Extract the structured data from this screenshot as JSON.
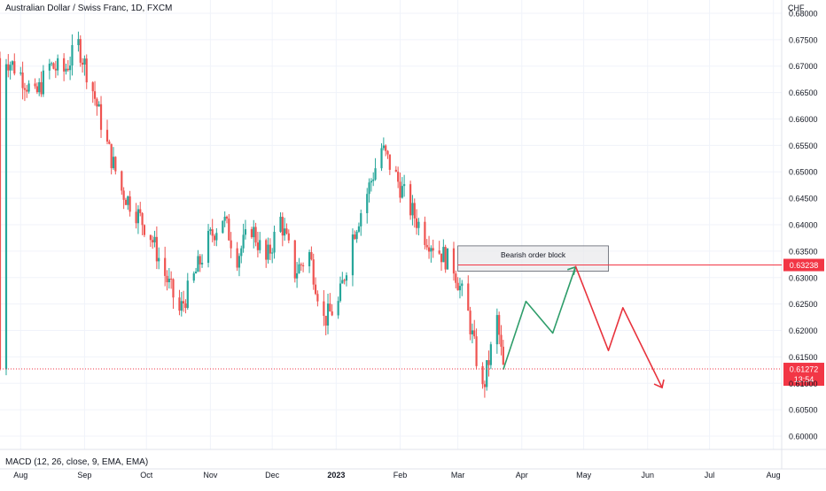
{
  "header": {
    "title": "Australian Dollar / Swiss Franc, 1D, FXCM",
    "currency": "CHF"
  },
  "indicator": {
    "label": "MACD (12, 26, close, 9, EMA, EMA)"
  },
  "colors": {
    "up": "#26a69a",
    "down": "#ef5350",
    "zone_fill": "#e9e9ec",
    "zone_stroke": "#5d606b",
    "projection_up": "#2e9d6a",
    "projection_down": "#e8323c",
    "price_line": "#f23645"
  },
  "chart_data": {
    "type": "candlestick",
    "timeframe": "1D",
    "x_tick_labels": [
      "Aug",
      "Sep",
      "Oct",
      "Nov",
      "Dec",
      "2023",
      "Feb",
      "Mar",
      "Apr",
      "May",
      "Jun",
      "Jul",
      "Aug"
    ],
    "y_tick_labels": [
      "0.68000",
      "0.67500",
      "0.67000",
      "0.66500",
      "0.66000",
      "0.65500",
      "0.65000",
      "0.64500",
      "0.64000",
      "0.63500",
      "0.63000",
      "0.62500",
      "0.62000",
      "0.61500",
      "0.61000",
      "0.60500",
      "0.60000"
    ],
    "ylim": [
      0.5975,
      0.6825
    ],
    "xlim": [
      "2022-07-22",
      "2023-08-05"
    ],
    "grid": true,
    "price_path_close": [
      [
        "2022-07-25",
        0.6715
      ],
      [
        "2022-08-01",
        0.6685
      ],
      [
        "2022-08-08",
        0.664
      ],
      [
        "2022-08-15",
        0.67
      ],
      [
        "2022-08-22",
        0.669
      ],
      [
        "2022-08-29",
        0.674
      ],
      [
        "2022-09-05",
        0.6655
      ],
      [
        "2022-09-12",
        0.655
      ],
      [
        "2022-09-19",
        0.6465
      ],
      [
        "2022-09-26",
        0.6425
      ],
      [
        "2022-10-03",
        0.638
      ],
      [
        "2022-10-10",
        0.6305
      ],
      [
        "2022-10-17",
        0.6235
      ],
      [
        "2022-10-24",
        0.63
      ],
      [
        "2022-10-31",
        0.637
      ],
      [
        "2022-11-07",
        0.6415
      ],
      [
        "2022-11-14",
        0.634
      ],
      [
        "2022-11-21",
        0.6395
      ],
      [
        "2022-11-28",
        0.633
      ],
      [
        "2022-12-05",
        0.641
      ],
      [
        "2022-12-12",
        0.631
      ],
      [
        "2022-12-19",
        0.6345
      ],
      [
        "2022-12-26",
        0.622
      ],
      [
        "2023-01-02",
        0.625
      ],
      [
        "2023-01-09",
        0.638
      ],
      [
        "2023-01-16",
        0.646
      ],
      [
        "2023-01-23",
        0.6545
      ],
      [
        "2023-01-30",
        0.649
      ],
      [
        "2023-02-06",
        0.643
      ],
      [
        "2023-02-13",
        0.638
      ],
      [
        "2023-02-20",
        0.635
      ],
      [
        "2023-02-27",
        0.632
      ],
      [
        "2023-03-06",
        0.623
      ],
      [
        "2023-03-13",
        0.6085
      ],
      [
        "2023-03-20",
        0.622
      ],
      [
        "2023-03-23",
        0.6127
      ]
    ],
    "last_price": "0.61272",
    "countdown": "13:54",
    "zone": {
      "label": "Bearish order block",
      "x_start": "2023-03-01",
      "x_end": "2023-05-13",
      "y_top": 0.636,
      "y_bottom": 0.6312,
      "level": "0.63238"
    },
    "projection": {
      "up_path": [
        [
          "2023-03-23",
          0.6126
        ],
        [
          "2023-04-03",
          0.6255
        ],
        [
          "2023-04-16",
          0.6195
        ],
        [
          "2023-04-27",
          0.632
        ]
      ],
      "down_path": [
        [
          "2023-04-27",
          0.6322
        ],
        [
          "2023-05-13",
          0.6162
        ],
        [
          "2023-05-20",
          0.6243
        ],
        [
          "2023-06-08",
          0.6092
        ]
      ]
    }
  }
}
